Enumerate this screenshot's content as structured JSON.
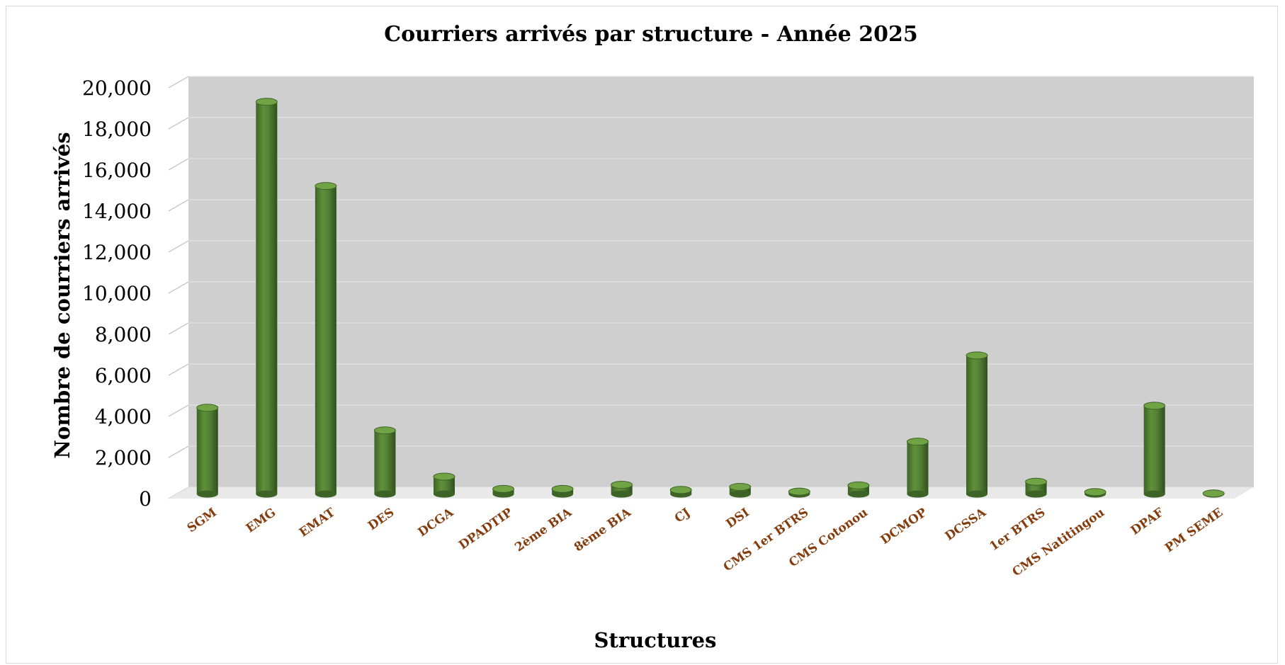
{
  "chart_data": {
    "type": "bar",
    "title": "Courriers arrivés par structure - Année 2025",
    "xlabel": "Structures",
    "ylabel": "Nombre de courriers arrivés",
    "categories": [
      "SGM",
      "EMG",
      "EMAT",
      "DES",
      "DCGA",
      "DPADTIP",
      "2ème BIA",
      "8ème BIA",
      "CJ",
      "DSI",
      "CMS 1er BTRS",
      "CMS Cotonou",
      "DCMOP",
      "DCSSA",
      "1er BTRS",
      "CMS Natitingou",
      "DPAF",
      "PM SEME"
    ],
    "values": [
      4200,
      19100,
      15000,
      3100,
      850,
      250,
      250,
      450,
      200,
      350,
      120,
      420,
      2550,
      6750,
      600,
      100,
      4300,
      30
    ],
    "ylim": [
      0,
      20000
    ],
    "yticks": [
      "0",
      "2,000",
      "4,000",
      "6,000",
      "8,000",
      "10,000",
      "12,000",
      "14,000",
      "16,000",
      "18,000",
      "20,000"
    ],
    "ytick_values": [
      0,
      2000,
      4000,
      6000,
      8000,
      10000,
      12000,
      14000,
      16000,
      18000,
      20000
    ],
    "grid": true,
    "legend": "none",
    "colors": {
      "bar": "#548235",
      "bar_dark": "#2f4f1c",
      "bar_light": "#70a344",
      "plot_background": "#d0cfd0",
      "gridline": "#e0e0e0",
      "category_label": "#843c0c"
    }
  }
}
